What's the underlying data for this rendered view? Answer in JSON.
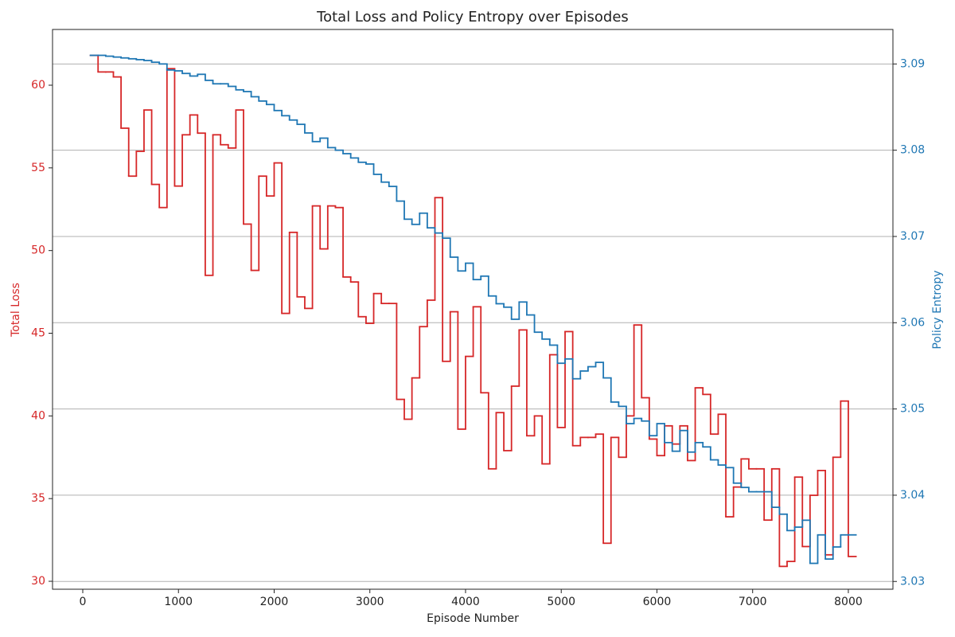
{
  "chart_data": {
    "type": "line",
    "drawstyle": "steps-post",
    "title": "Total Loss and Policy Entropy over Episodes",
    "x_label": "Episode Number",
    "y_label": "Total Loss",
    "y2_label": "Policy Entropy",
    "x": [
      80,
      160,
      240,
      320,
      400,
      480,
      560,
      640,
      720,
      800,
      880,
      960,
      1040,
      1120,
      1200,
      1280,
      1360,
      1440,
      1520,
      1600,
      1680,
      1760,
      1840,
      1920,
      2000,
      2080,
      2160,
      2240,
      2320,
      2400,
      2480,
      2560,
      2640,
      2720,
      2800,
      2880,
      2960,
      3040,
      3120,
      3200,
      3280,
      3360,
      3440,
      3520,
      3600,
      3680,
      3760,
      3840,
      3920,
      4000,
      4080,
      4160,
      4240,
      4320,
      4400,
      4480,
      4560,
      4640,
      4720,
      4800,
      4880,
      4960,
      5040,
      5120,
      5200,
      5280,
      5360,
      5440,
      5520,
      5600,
      5680,
      5760,
      5840,
      5920,
      6000,
      6080,
      6160,
      6240,
      6320,
      6400,
      6480,
      6560,
      6640,
      6720,
      6800,
      6880,
      6960,
      7040,
      7120,
      7200,
      7280,
      7360,
      7440,
      7520,
      7600,
      7680,
      7760,
      7840,
      7920,
      8000
    ],
    "series": [
      {
        "name": "Total Loss",
        "color": "#d62728",
        "axis": "y",
        "values": [
          61.8,
          60.8,
          60.8,
          60.5,
          57.4,
          54.5,
          56.0,
          58.5,
          54.0,
          52.6,
          61.0,
          53.9,
          57.0,
          58.2,
          57.1,
          48.5,
          57.0,
          56.4,
          56.2,
          58.5,
          51.6,
          48.8,
          54.5,
          53.3,
          55.3,
          46.2,
          51.1,
          47.2,
          46.5,
          52.7,
          50.1,
          52.7,
          52.6,
          48.4,
          48.1,
          46.0,
          45.6,
          47.4,
          46.8,
          46.8,
          41.0,
          39.8,
          42.3,
          45.4,
          47.0,
          53.2,
          43.3,
          46.3,
          39.2,
          43.6,
          46.6,
          41.4,
          36.8,
          40.2,
          37.9,
          41.8,
          45.2,
          38.8,
          40.0,
          37.1,
          43.7,
          39.3,
          45.1,
          38.2,
          38.7,
          38.7,
          38.9,
          32.3,
          38.7,
          37.5,
          40.0,
          45.5,
          41.1,
          38.6,
          37.6,
          39.4,
          38.3,
          39.4,
          37.3,
          41.7,
          41.3,
          38.9,
          40.1,
          33.9,
          35.7,
          37.4,
          36.8,
          36.8,
          33.7,
          36.8,
          30.9,
          31.2,
          36.3,
          32.1,
          35.2,
          36.7,
          31.6,
          37.5,
          40.9,
          31.5
        ]
      },
      {
        "name": "Policy Entropy",
        "color": "#1f77b4",
        "axis": "y2",
        "values": [
          3.091,
          3.091,
          3.0909,
          3.0908,
          3.0907,
          3.0906,
          3.0905,
          3.0904,
          3.0902,
          3.09,
          3.0893,
          3.0892,
          3.0889,
          3.0886,
          3.0888,
          3.0881,
          3.0877,
          3.0877,
          3.0874,
          3.087,
          3.0868,
          3.0862,
          3.0857,
          3.0853,
          3.0846,
          3.084,
          3.0835,
          3.083,
          3.082,
          3.081,
          3.0814,
          3.0803,
          3.08,
          3.0796,
          3.0791,
          3.0786,
          3.0784,
          3.0772,
          3.0763,
          3.0758,
          3.0741,
          3.072,
          3.0714,
          3.0727,
          3.071,
          3.0704,
          3.0698,
          3.0676,
          3.066,
          3.0669,
          3.065,
          3.0654,
          3.0631,
          3.0622,
          3.0618,
          3.0604,
          3.0624,
          3.0609,
          3.0589,
          3.0581,
          3.0574,
          3.0553,
          3.0558,
          3.0535,
          3.0544,
          3.0549,
          3.0554,
          3.0536,
          3.0508,
          3.0503,
          3.0483,
          3.0489,
          3.0486,
          3.0469,
          3.0483,
          3.0461,
          3.0451,
          3.0475,
          3.045,
          3.0461,
          3.0456,
          3.0441,
          3.0435,
          3.0432,
          3.0414,
          3.0409,
          3.0404,
          3.0404,
          3.0404,
          3.0386,
          3.0378,
          3.0359,
          3.0363,
          3.0371,
          3.0321,
          3.0354,
          3.0326,
          3.034,
          3.0354,
          3.0354
        ]
      }
    ],
    "xlim": [
      -316,
      8466
    ],
    "xticks": [
      0,
      1000,
      2000,
      3000,
      4000,
      5000,
      6000,
      7000,
      8000
    ],
    "ylim": [
      29.52,
      63.37
    ],
    "yticks": [
      30,
      35,
      40,
      45,
      50,
      55,
      60
    ],
    "y2lim": [
      3.0291,
      3.094
    ],
    "y2ticks": [
      3.03,
      3.04,
      3.05,
      3.06,
      3.07,
      3.08,
      3.09
    ],
    "grid": "y2"
  }
}
